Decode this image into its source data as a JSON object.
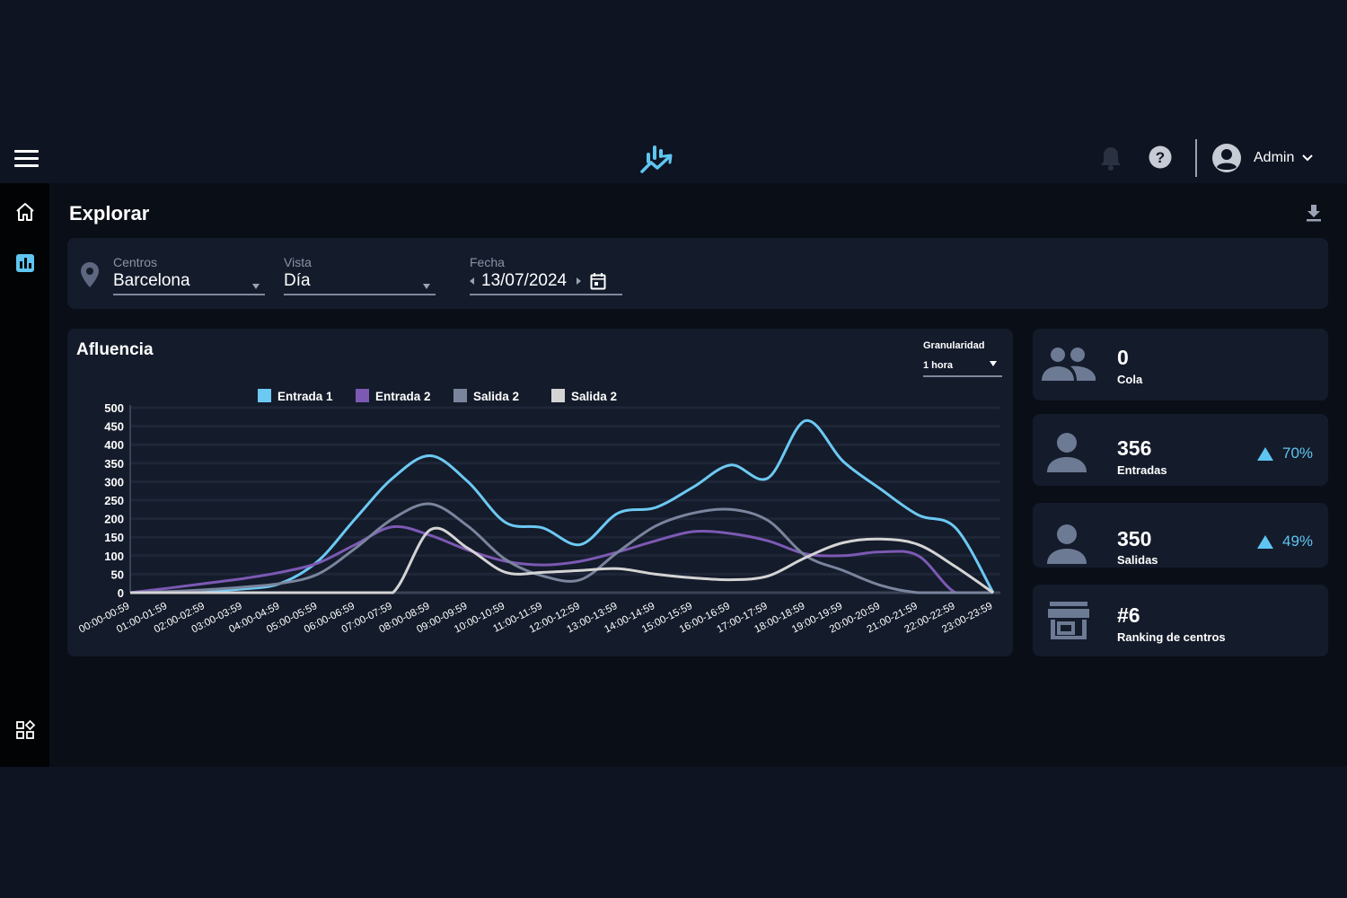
{
  "header": {
    "user_name": "Admin"
  },
  "page": {
    "title": "Explorar"
  },
  "filters": {
    "centros": {
      "label": "Centros",
      "value": "Barcelona"
    },
    "vista": {
      "label": "Vista",
      "value": "Día"
    },
    "fecha": {
      "label": "Fecha",
      "value": "13/07/2024"
    }
  },
  "chart_panel": {
    "title": "Afluencia",
    "granularity_label": "Granularidad",
    "granularity_value": "1 hora"
  },
  "chart_data": {
    "type": "line",
    "categories": [
      "00:00-00:59",
      "01:00-01:59",
      "02:00-02:59",
      "03:00-03:59",
      "04:00-04:59",
      "05:00-05:59",
      "06:00-06:59",
      "07:00-07:59",
      "08:00-08:59",
      "09:00-09:59",
      "10:00-10:59",
      "11:00-11:59",
      "12:00-12:59",
      "13:00-13:59",
      "14:00-14:59",
      "15:00-15:59",
      "16:00-16:59",
      "17:00-17:59",
      "18:00-18:59",
      "19:00-19:59",
      "20:00-20:59",
      "21:00-21:59",
      "22:00-22:59",
      "23:00-23:59"
    ],
    "series": [
      {
        "name": "Entrada 1",
        "color": "#6cc9f2",
        "values": [
          0,
          2,
          5,
          10,
          25,
          85,
          200,
          310,
          370,
          300,
          190,
          175,
          130,
          215,
          230,
          285,
          345,
          310,
          465,
          355,
          280,
          210,
          175,
          0
        ]
      },
      {
        "name": "Entrada 2",
        "color": "#7c59b3",
        "values": [
          0,
          12,
          25,
          38,
          55,
          80,
          130,
          178,
          155,
          115,
          85,
          75,
          85,
          110,
          140,
          165,
          160,
          140,
          105,
          100,
          110,
          100,
          0,
          0
        ]
      },
      {
        "name": "Salida 2",
        "color": "#7a859d",
        "values": [
          0,
          3,
          8,
          15,
          25,
          50,
          120,
          200,
          240,
          180,
          90,
          45,
          35,
          110,
          180,
          215,
          225,
          195,
          100,
          60,
          20,
          0,
          0,
          0
        ]
      },
      {
        "name": "Salida 2",
        "color": "#d4d4d4",
        "values": [
          0,
          0,
          0,
          0,
          0,
          0,
          0,
          0,
          170,
          120,
          55,
          55,
          60,
          65,
          50,
          40,
          35,
          45,
          95,
          135,
          145,
          130,
          70,
          0
        ]
      }
    ],
    "ylim": [
      0,
      500
    ],
    "yticks": [
      0,
      50,
      100,
      150,
      200,
      250,
      300,
      350,
      400,
      450,
      500
    ],
    "grid": true,
    "legend": "top"
  },
  "stats": [
    {
      "value": "0",
      "label": "Cola",
      "icon": "group-icon"
    },
    {
      "value": "356",
      "label": "Entradas",
      "icon": "person-icon",
      "trend": "70%"
    },
    {
      "value": "350",
      "label": "Salidas",
      "icon": "person-icon",
      "trend": "49%"
    },
    {
      "value": "#6",
      "label": "Ranking de centros",
      "icon": "store-icon"
    }
  ],
  "colors": {
    "accent": "#5fc5f0",
    "background": "#0e1422",
    "panel": "#141b2b"
  }
}
